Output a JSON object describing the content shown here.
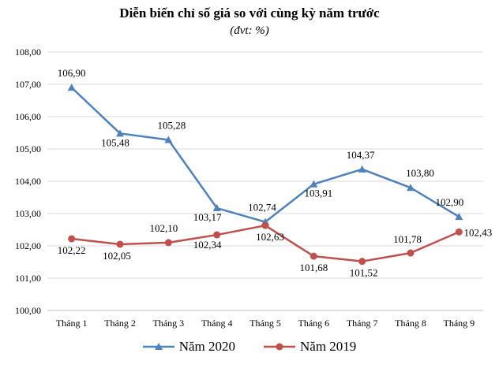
{
  "chart_data": {
    "type": "line",
    "title": "Diễn biến chỉ số giá so với cùng kỳ năm trước",
    "subtitle": "(đvt: %)",
    "categories": [
      "Tháng 1",
      "Tháng 2",
      "Tháng 3",
      "Tháng 4",
      "Tháng 5",
      "Tháng 6",
      "Tháng 7",
      "Tháng 8",
      "Tháng 9"
    ],
    "yticks": [
      "100,00",
      "101,00",
      "102,00",
      "103,00",
      "104,00",
      "105,00",
      "106,00",
      "107,00",
      "108,00"
    ],
    "ylim": [
      100,
      108
    ],
    "grid": true,
    "legend_position": "bottom",
    "series": [
      {
        "name": "Năm 2020",
        "color": "#4F81BD",
        "marker": "triangle",
        "values": [
          106.9,
          105.48,
          105.28,
          103.17,
          102.74,
          103.91,
          104.37,
          103.8,
          102.9
        ],
        "labels": [
          "106,90",
          "105,48",
          "105,28",
          "103,17",
          "102,74",
          "103,91",
          "104,37",
          "103,80",
          "102,90"
        ]
      },
      {
        "name": "Năm 2019",
        "color": "#C0504D",
        "marker": "circle",
        "values": [
          102.22,
          102.05,
          102.1,
          102.34,
          102.63,
          101.68,
          101.52,
          101.78,
          102.43
        ],
        "labels": [
          "102,22",
          "102,05",
          "102,10",
          "102,34",
          "102,63",
          "101,68",
          "101,52",
          "101,78",
          "102,43"
        ]
      }
    ]
  }
}
